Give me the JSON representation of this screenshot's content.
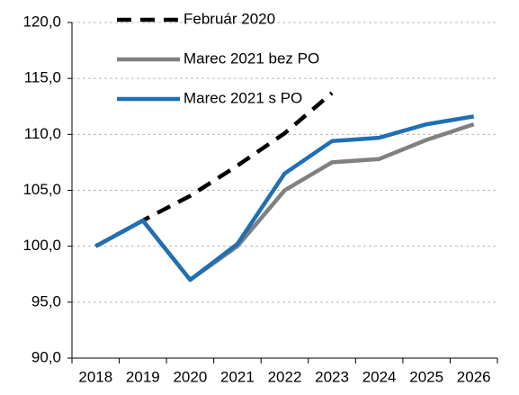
{
  "chart_data": {
    "type": "line",
    "categories": [
      "2018",
      "2019",
      "2020",
      "2021",
      "2022",
      "2023",
      "2024",
      "2025",
      "2026"
    ],
    "series": [
      {
        "name": "Február 2020",
        "color": "#000000",
        "dash": true,
        "values": [
          100.0,
          102.3,
          104.5,
          107.2,
          110.1,
          113.7,
          null,
          null,
          null
        ]
      },
      {
        "name": "Marec 2021 bez PO",
        "color": "#808080",
        "dash": false,
        "values": [
          100.0,
          102.3,
          97.0,
          100.0,
          105.0,
          107.5,
          107.8,
          109.5,
          110.9
        ]
      },
      {
        "name": "Marec 2021 s PO",
        "color": "#1f6fb4",
        "dash": false,
        "values": [
          100.0,
          102.3,
          97.0,
          100.2,
          106.5,
          109.4,
          109.7,
          110.9,
          111.6
        ]
      }
    ],
    "ylim": [
      90,
      120
    ],
    "yticks": [
      {
        "value": 90,
        "label": "90,0"
      },
      {
        "value": 95,
        "label": "95,0"
      },
      {
        "value": 100,
        "label": "100,0"
      },
      {
        "value": 105,
        "label": "105,0"
      },
      {
        "value": 110,
        "label": "110,0"
      },
      {
        "value": 115,
        "label": "115,0"
      },
      {
        "value": 120,
        "label": "120,0"
      }
    ],
    "grid": true,
    "legend": "top-left"
  }
}
